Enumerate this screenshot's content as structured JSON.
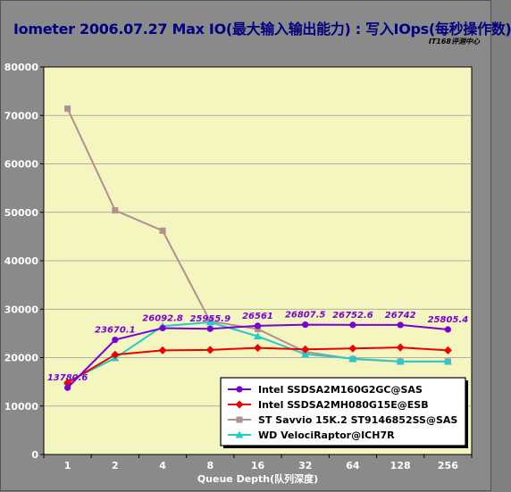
{
  "title": "Iometer 2006.07.27 Max IO(最大输入输出能力) : 写入IOps(每秒操作数)",
  "watermark": "IT168评测中心",
  "chart_data": {
    "type": "line",
    "xlabel": "Queue Depth(队列深度)",
    "ylabel": "",
    "categories": [
      "1",
      "2",
      "4",
      "8",
      "16",
      "32",
      "64",
      "128",
      "256"
    ],
    "ylim": [
      0,
      80000
    ],
    "yticks": [
      0,
      10000,
      20000,
      30000,
      40000,
      50000,
      60000,
      70000,
      80000
    ],
    "grid": true,
    "legend_position": "bottom-right",
    "series": [
      {
        "name": "Intel SSDSA2M160G2GC@SAS",
        "color": "#7a00d6",
        "marker": "circle",
        "values": [
          13780.6,
          23670.1,
          26092.8,
          25955.9,
          26561,
          26807.5,
          26752.6,
          26742,
          25805.4
        ],
        "labels": [
          "13780.6",
          "23670.1",
          "26092.8",
          "25955.9",
          "26561",
          "26807.5",
          "26752.6",
          "26742",
          "25805.4"
        ]
      },
      {
        "name": "Intel SSDSA2MH080G15E@ESB",
        "color": "#ee0000",
        "marker": "diamond",
        "values": [
          14800,
          20600,
          21500,
          21600,
          22000,
          21700,
          21900,
          22100,
          21500
        ]
      },
      {
        "name": "ST Savvio 15K.2 ST9146852SS@SAS",
        "color": "#b09090",
        "marker": "square",
        "values": [
          71400,
          50400,
          46200,
          27500,
          25900,
          21200,
          19700,
          19200,
          19200
        ]
      },
      {
        "name": "WD VelociRaptor@ICH7R",
        "color": "#22cccc",
        "marker": "triangle",
        "values": [
          15000,
          19900,
          26500,
          27300,
          24400,
          20700,
          19800,
          19200,
          19200
        ]
      }
    ]
  }
}
